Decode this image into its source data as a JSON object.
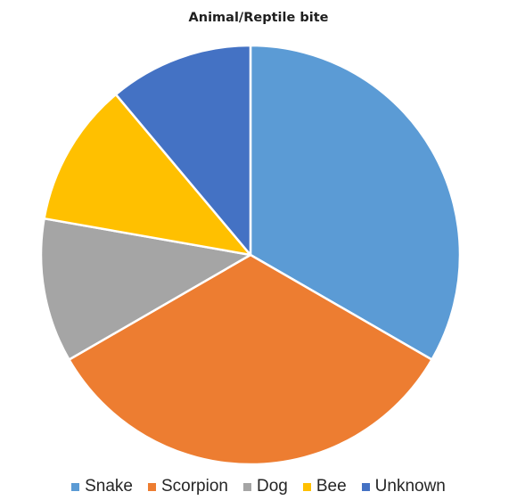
{
  "chart_data": {
    "type": "pie",
    "title": "Animal/Reptile bite",
    "categories": [
      "Snake",
      "Scorpion",
      "Dog",
      "Bee",
      "Unknown"
    ],
    "values": [
      33.3,
      33.3,
      11.1,
      11.1,
      11.1
    ],
    "colors": [
      "#5B9BD5",
      "#ED7D31",
      "#A5A5A5",
      "#FFC000",
      "#4472C4"
    ],
    "start_angle_deg": 0,
    "direction": "clockwise",
    "slice_border_color": "#ffffff",
    "legend_position": "bottom"
  }
}
